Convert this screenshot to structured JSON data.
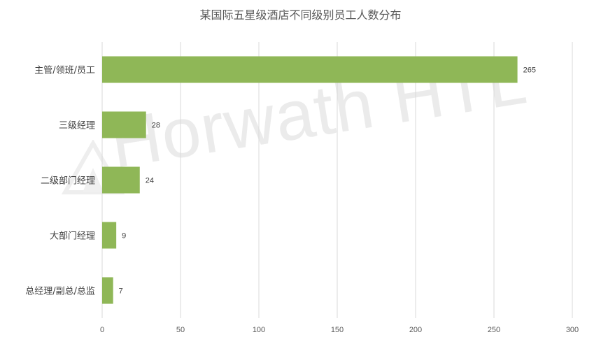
{
  "chart_data": {
    "type": "bar",
    "orientation": "horizontal",
    "title": "某国际五星级酒店不同级别员工人数分布",
    "categories": [
      "主管/领班/员工",
      "三级经理",
      "二级部门经理",
      "大部门经理",
      "总经理/副总/总监"
    ],
    "values": [
      265,
      28,
      24,
      9,
      7
    ],
    "xlim": [
      0,
      300
    ],
    "xticks": [
      0,
      50,
      100,
      150,
      200,
      250,
      300
    ],
    "grid": true,
    "bar_color": "#8fb757",
    "grid_color": "#d9d9d9"
  },
  "watermark_text": "Horwath HTL"
}
